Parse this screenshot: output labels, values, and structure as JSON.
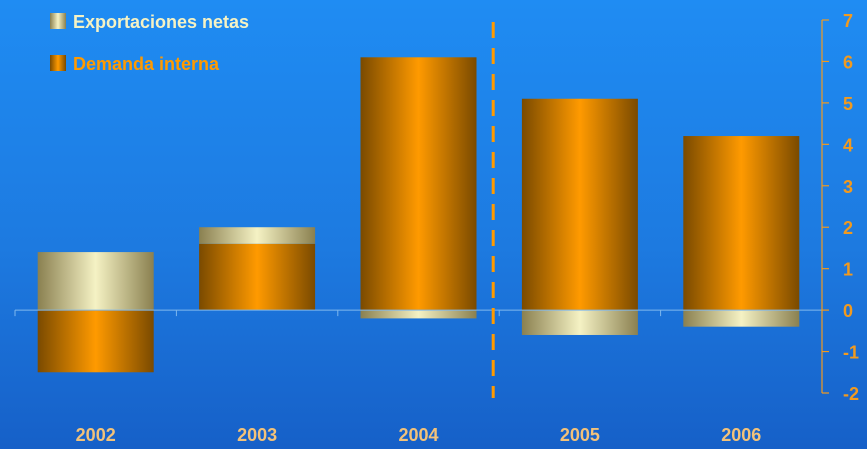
{
  "colors": {
    "net_exports_edge": "#8a8050",
    "net_exports_mid": "#f5f2c4",
    "domestic_edge": "#7a4a00",
    "domestic_mid": "#ff9a00",
    "axis_labels": "#f29a1e",
    "category_labels": "#f2c27a",
    "legend_text_1": "#f5f2c4",
    "legend_text_2": "#ff9a00",
    "divider": "#ff9a00"
  },
  "chart_data": {
    "type": "bar",
    "stacked": true,
    "categories": [
      "2002",
      "2003",
      "2004",
      "2005",
      "2006"
    ],
    "series": [
      {
        "name": "Exportaciones netas",
        "values": [
          1.4,
          0.4,
          -0.2,
          -0.6,
          -0.4
        ]
      },
      {
        "name": "Demanda interna",
        "values": [
          -1.5,
          1.6,
          6.1,
          5.1,
          4.2
        ]
      }
    ],
    "ylim": [
      -2,
      7
    ],
    "yticks": [
      -2,
      -1,
      0,
      1,
      2,
      3,
      4,
      5,
      6,
      7
    ],
    "y_axis_side": "right",
    "legend_position": "top-left",
    "divider_between": [
      "2004",
      "2005"
    ]
  }
}
